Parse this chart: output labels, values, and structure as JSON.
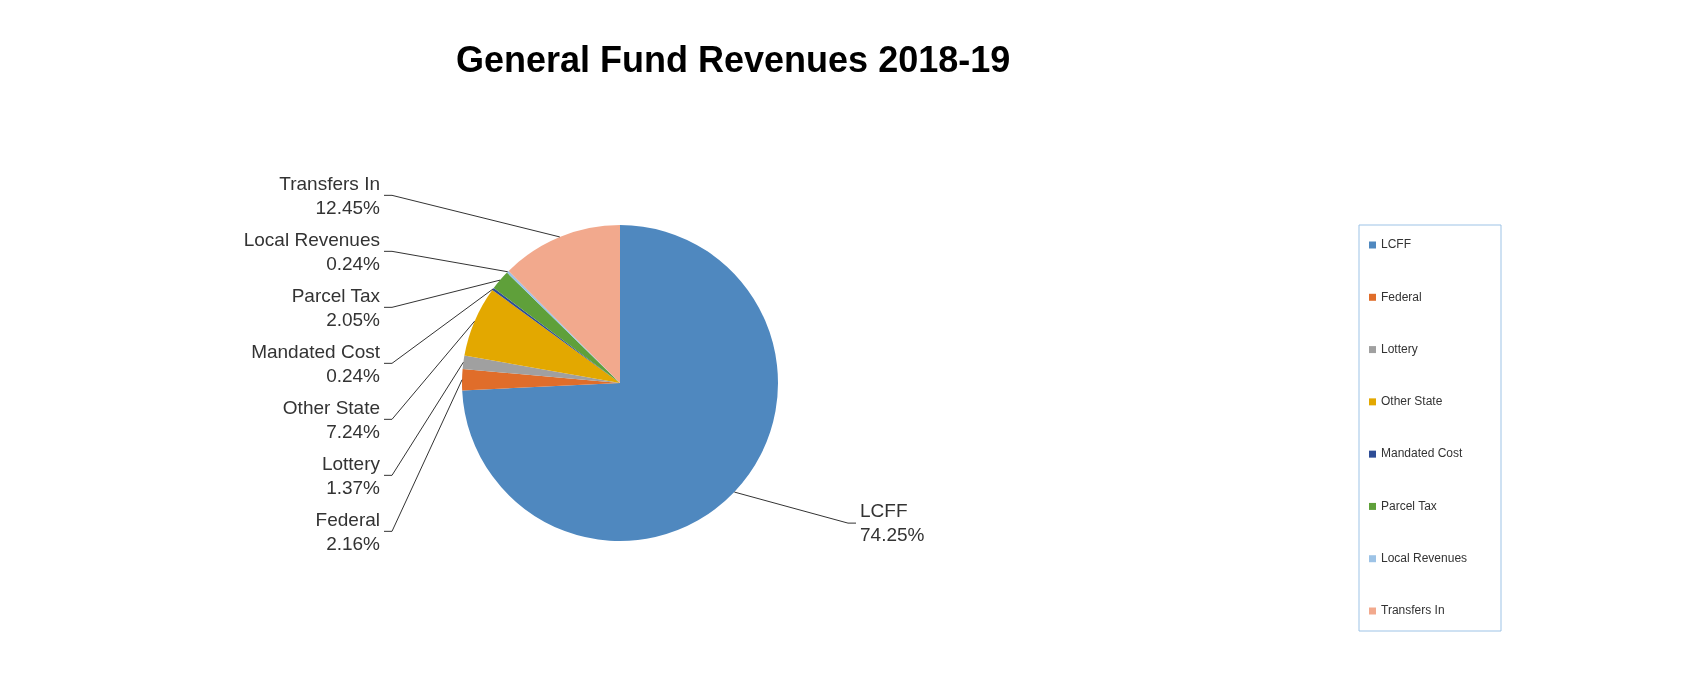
{
  "chart_data": {
    "type": "pie",
    "title": "General Fund Revenues 2018-19",
    "categories": [
      "LCFF",
      "Federal",
      "Lottery",
      "Other State",
      "Mandated Cost",
      "Parcel Tax",
      "Local Revenues",
      "Transfers In"
    ],
    "values": [
      74.25,
      2.16,
      1.37,
      7.24,
      0.24,
      2.05,
      0.24,
      12.45
    ],
    "value_labels": [
      "74.25%",
      "2.16%",
      "1.37%",
      "7.24%",
      "0.24%",
      "2.05%",
      "0.24%",
      "12.45%"
    ],
    "colors": [
      "#4f88bf",
      "#e06d2a",
      "#a0a0a0",
      "#e3a800",
      "#2e4d96",
      "#5fa03a",
      "#9dc3e6",
      "#f2a98d"
    ],
    "legend": "right"
  }
}
